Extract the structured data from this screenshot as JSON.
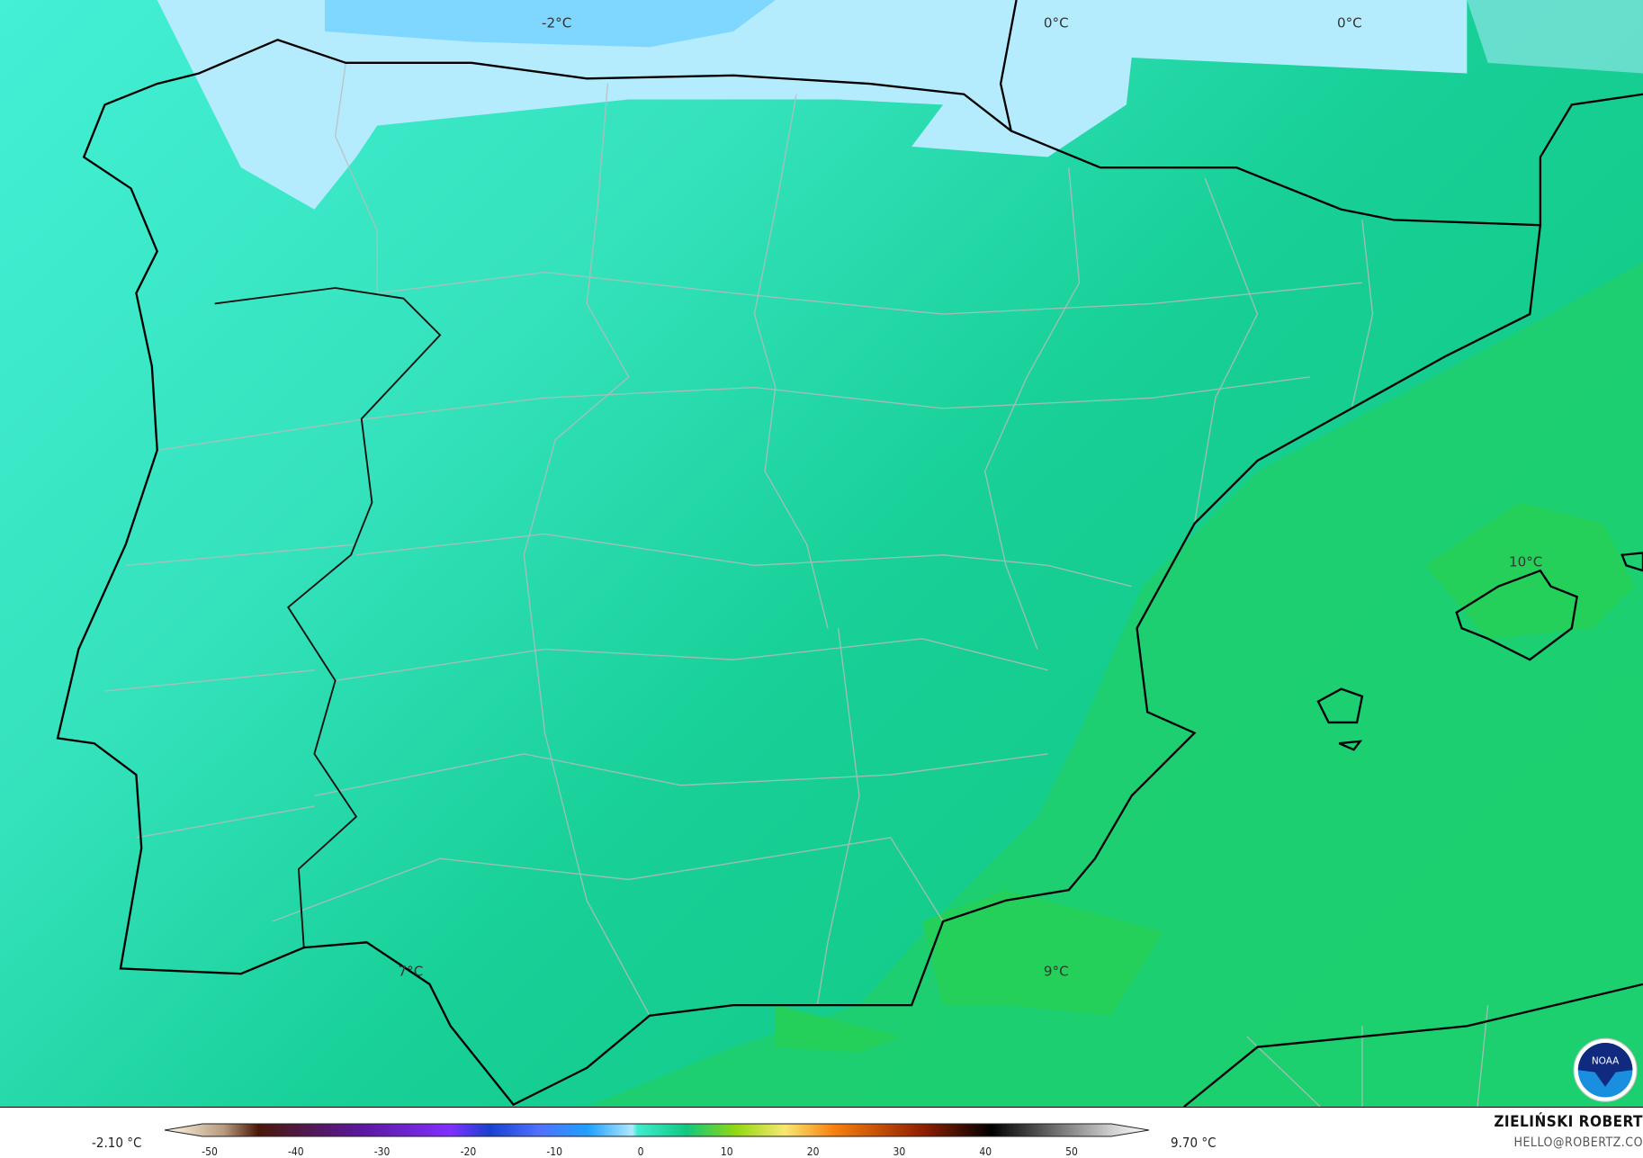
{
  "map": {
    "contour_labels": [
      {
        "text": "-2°C"
      },
      {
        "text": "0°C"
      },
      {
        "text": "0°C"
      },
      {
        "text": "10°C"
      },
      {
        "text": "7°C"
      },
      {
        "text": "9°C"
      }
    ],
    "logo": "NOAA",
    "colors": {
      "cold_blue": "#7fd6ff",
      "light_blue": "#b5ecfd",
      "cyan": "#40ecd0",
      "teal": "#20d6a0",
      "green": "#22d066"
    }
  },
  "legend": {
    "min_label": "-2.10 °C",
    "max_label": "9.70 °C",
    "ticks": [
      "-50",
      "-40",
      "-30",
      "-20",
      "-10",
      "0",
      "10",
      "20",
      "30",
      "40",
      "50"
    ],
    "range": [
      -50,
      55
    ]
  },
  "credit": {
    "name": "ZIELIŃSKI ROBERT",
    "email": "HELLO@ROBERTZ.CO"
  }
}
